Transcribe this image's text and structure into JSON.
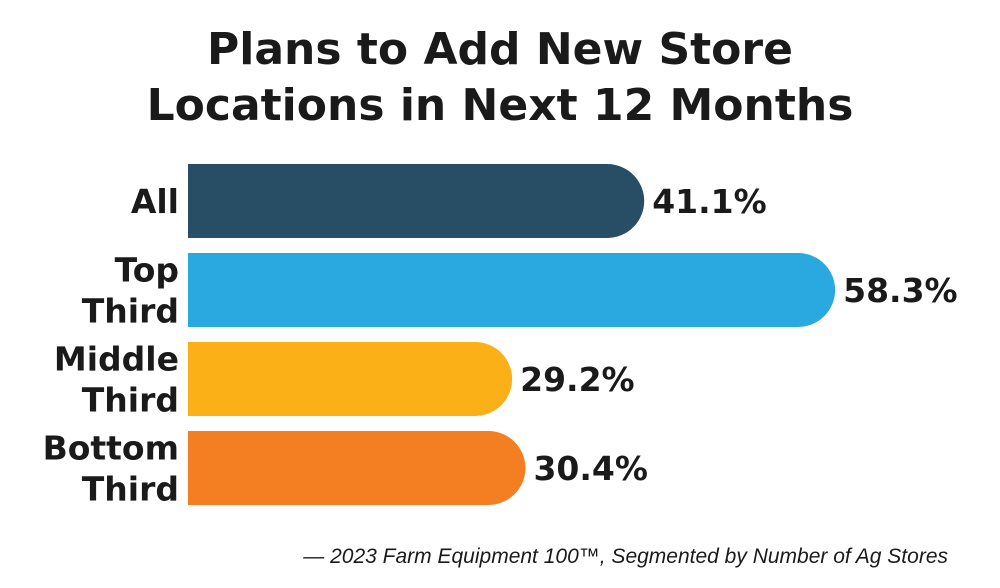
{
  "chart_data": {
    "type": "bar",
    "orientation": "horizontal",
    "title_lines": [
      "Plans to Add New Store",
      "Locations in Next 12 Months"
    ],
    "categories": [
      [
        "All"
      ],
      [
        "Top",
        "Third"
      ],
      [
        "Middle",
        "Third"
      ],
      [
        "Bottom",
        "Third"
      ]
    ],
    "values": [
      41.1,
      58.3,
      29.2,
      30.4
    ],
    "value_labels": [
      "41.1%",
      "58.3%",
      "29.2%",
      "30.4%"
    ],
    "colors": [
      "#284e65",
      "#2aa8e0",
      "#fbb017",
      "#f37f22"
    ],
    "unit": "%",
    "grid": false,
    "legend": "none"
  },
  "source": "— 2023 Farm Equipment 100™, Segmented by Number of Ag Stores"
}
